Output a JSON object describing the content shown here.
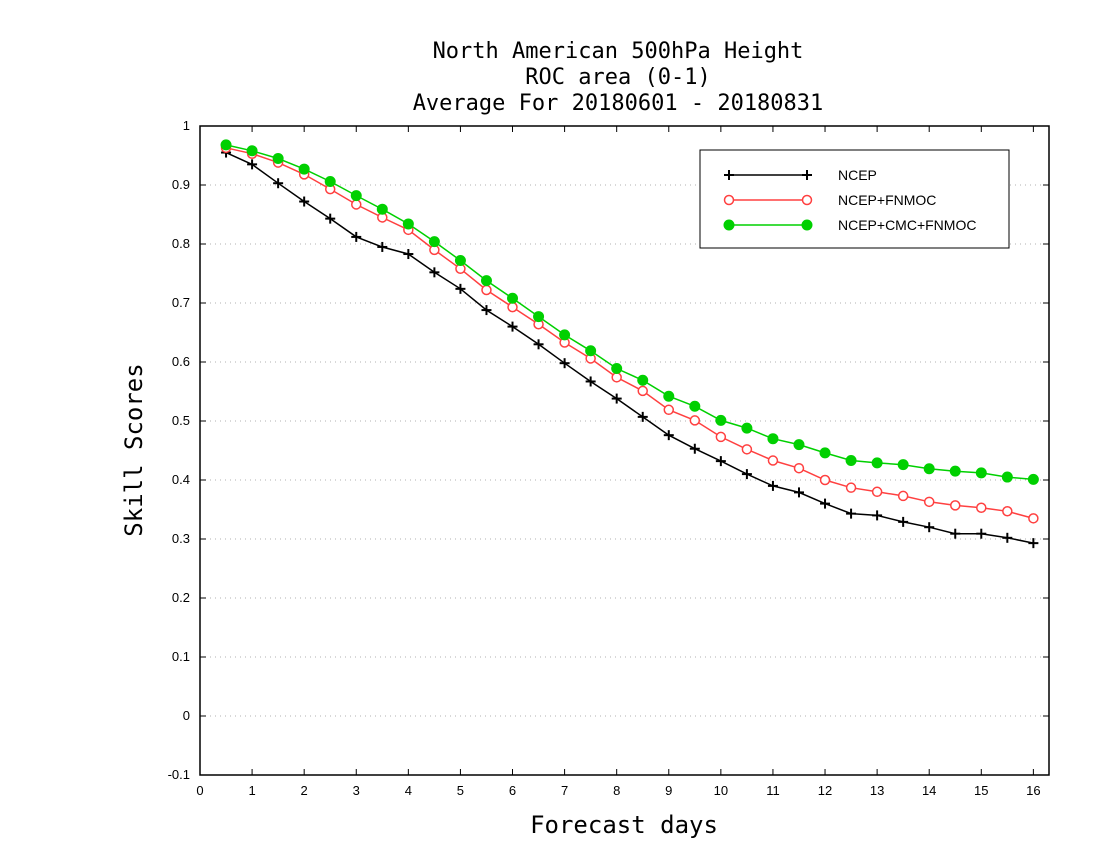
{
  "chart_data": {
    "type": "line",
    "title": [
      "North American 500hPa Height",
      "ROC area (0-1)",
      "Average For 20180601 - 20180831"
    ],
    "xlabel": "Forecast days",
    "ylabel": "Skill Scores",
    "xlim": [
      0,
      16.3
    ],
    "ylim": [
      -0.1,
      1
    ],
    "xticks": [
      0,
      1,
      2,
      3,
      4,
      5,
      6,
      7,
      8,
      9,
      10,
      11,
      12,
      13,
      14,
      15,
      16
    ],
    "yticks": [
      -0.1,
      0,
      0.1,
      0.2,
      0.3,
      0.4,
      0.5,
      0.6,
      0.7,
      0.8,
      0.9,
      1
    ],
    "ytick_labels": [
      "-0.1",
      "0",
      "0.1",
      "0.2",
      "0.3",
      "0.4",
      "0.5",
      "0.6",
      "0.7",
      "0.8",
      "0.9",
      "1"
    ],
    "grid": "horizontal dotted",
    "legend_position": "top-right",
    "x": [
      0.5,
      1,
      1.5,
      2,
      2.5,
      3,
      3.5,
      4,
      4.5,
      5,
      5.5,
      6,
      6.5,
      7,
      7.5,
      8,
      8.5,
      9,
      9.5,
      10,
      10.5,
      11,
      11.5,
      12,
      12.5,
      13,
      13.5,
      14,
      14.5,
      15,
      15.5,
      16
    ],
    "series": [
      {
        "name": "NCEP",
        "color": "#000000",
        "marker": "plus",
        "values": [
          0.955,
          0.935,
          0.903,
          0.872,
          0.843,
          0.812,
          0.795,
          0.783,
          0.752,
          0.724,
          0.688,
          0.66,
          0.63,
          0.598,
          0.567,
          0.538,
          0.507,
          0.476,
          0.453,
          0.432,
          0.41,
          0.39,
          0.379,
          0.36,
          0.343,
          0.34,
          0.329,
          0.32,
          0.309,
          0.309,
          0.302,
          0.293
        ]
      },
      {
        "name": "NCEP+FNMOC",
        "color": "#ff4040",
        "marker": "open-circle",
        "values": [
          0.963,
          0.953,
          0.938,
          0.918,
          0.893,
          0.867,
          0.845,
          0.824,
          0.79,
          0.758,
          0.722,
          0.693,
          0.664,
          0.633,
          0.606,
          0.574,
          0.551,
          0.519,
          0.501,
          0.473,
          0.452,
          0.433,
          0.42,
          0.4,
          0.387,
          0.38,
          0.373,
          0.363,
          0.357,
          0.353,
          0.347,
          0.335
        ]
      },
      {
        "name": "NCEP+CMC+FNMOC",
        "color": "#00d000",
        "marker": "filled-circle",
        "values": [
          0.968,
          0.958,
          0.945,
          0.927,
          0.906,
          0.882,
          0.859,
          0.834,
          0.804,
          0.772,
          0.738,
          0.708,
          0.677,
          0.646,
          0.619,
          0.589,
          0.569,
          0.542,
          0.525,
          0.501,
          0.488,
          0.47,
          0.46,
          0.446,
          0.433,
          0.429,
          0.426,
          0.419,
          0.415,
          0.412,
          0.405,
          0.401
        ]
      }
    ]
  }
}
